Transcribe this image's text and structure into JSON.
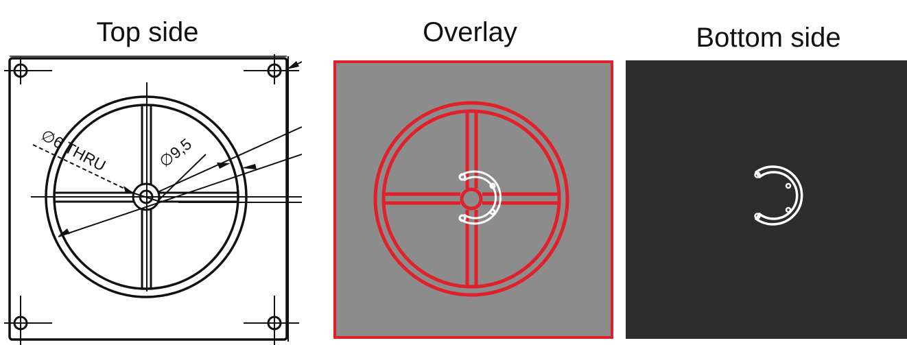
{
  "panels": {
    "top": {
      "title": "Top side"
    },
    "overlay": {
      "title": "Overlay"
    },
    "bottom": {
      "title": "Bottom side"
    }
  },
  "annotations": {
    "hole_dim": "∅6 THRU",
    "outer_dim": "∅9,5"
  },
  "colors": {
    "overlay_bg": "#8c8c8c",
    "overlay_accent": "#e0202a",
    "bottom_bg": "#2c2c2c",
    "trace": "#ffffff",
    "drawing_ink": "#111111"
  }
}
